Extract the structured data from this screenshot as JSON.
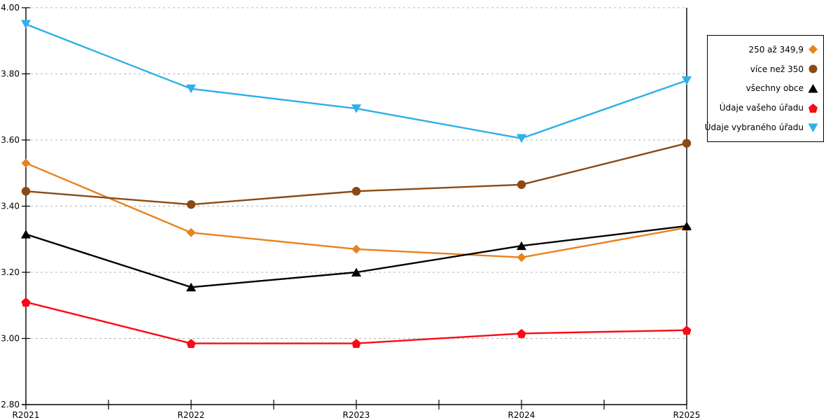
{
  "chart_data": {
    "type": "line",
    "title": "",
    "xlabel": "",
    "ylabel": "",
    "categories": [
      "R2021",
      "R2022",
      "R2023",
      "R2024",
      "R2025"
    ],
    "series": [
      {
        "name": "250 až 349,9",
        "marker": "diamond",
        "color": "#E8821E",
        "values": [
          3.53,
          3.32,
          3.27,
          3.245,
          3.335
        ]
      },
      {
        "name": "více než 350",
        "marker": "circle",
        "color": "#8B4A14",
        "values": [
          3.445,
          3.405,
          3.445,
          3.465,
          3.59
        ]
      },
      {
        "name": "všechny obce",
        "marker": "triangle-up",
        "color": "#000000",
        "values": [
          3.315,
          3.155,
          3.2,
          3.28,
          3.34
        ]
      },
      {
        "name": "Údaje vašeho úřadu",
        "marker": "pentagon",
        "color": "#FA0A14",
        "values": [
          3.11,
          2.985,
          2.985,
          3.015,
          3.025
        ]
      },
      {
        "name": "Údaje vybraného úřadu",
        "marker": "triangle-down",
        "color": "#2EB0E8",
        "values": [
          3.95,
          3.755,
          3.695,
          3.605,
          3.78
        ]
      }
    ],
    "ylim": [
      2.8,
      4.0
    ],
    "ytick_step": 0.2,
    "ytick_labels": [
      "4.00",
      "3.80",
      "3.60",
      "3.40",
      "3.20",
      "3.00",
      "2.80"
    ],
    "grid": "horizontal-dotted",
    "legend_position": "top-right",
    "axis_color": "#000000",
    "gridline_color": "#b3b3b3"
  }
}
